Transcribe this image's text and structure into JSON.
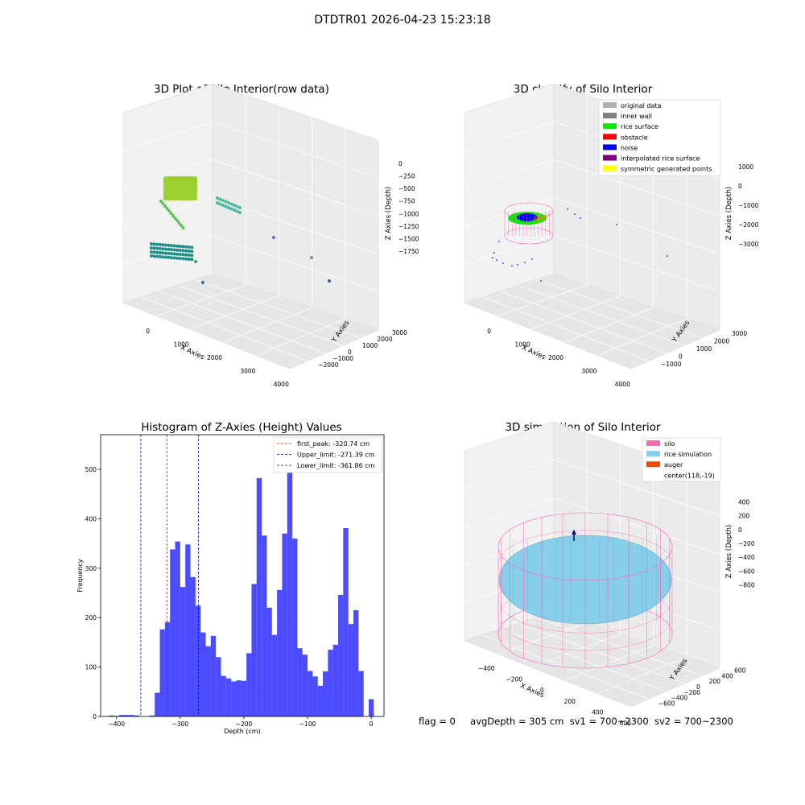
{
  "suptitle": "DTDTR01 2026-04-23 15:23:18",
  "status": {
    "flag": "flag = 0",
    "avg": "avgDepth = 305 cm",
    "sv1": "sv1 = 700~2300",
    "sv2": "sv2 = 700~2300"
  },
  "chart_data": [
    {
      "type": "scatter3d",
      "title": "3D Plot of Silo Interior(row data)",
      "xlabel": "X Axies",
      "ylabel": "Y Axies",
      "zlabel": "Z Axies (Depth)",
      "x_ticks": [
        "0",
        "1000",
        "2000",
        "3000",
        "4000"
      ],
      "y_ticks": [
        "−2000",
        "−1000",
        "0",
        "1000",
        "2000",
        "3000"
      ],
      "z_ticks": [
        "0",
        "−250",
        "−500",
        "−750",
        "−1000",
        "−1250",
        "−1500",
        "−1750"
      ],
      "colormap": "viridis"
    },
    {
      "type": "scatter3d",
      "title": "3D classify of Silo Interior",
      "xlabel": "X Axies",
      "ylabel": "Y Axies",
      "zlabel": "Z Axies (Depth)",
      "x_ticks": [
        "0",
        "1000",
        "2000",
        "3000",
        "4000"
      ],
      "y_ticks": [
        "−1000",
        "0",
        "1000",
        "2000",
        "3000"
      ],
      "z_ticks": [
        "1000",
        "0",
        "−1000",
        "−2000",
        "−3000"
      ],
      "legend_position": "top-right",
      "legend": [
        {
          "label": "original data",
          "color": "#b0b0b0"
        },
        {
          "label": "inner wall",
          "color": "#808080"
        },
        {
          "label": "rice surface",
          "color": "#00ee00"
        },
        {
          "label": "obstacle",
          "color": "#ff0000"
        },
        {
          "label": "noise",
          "color": "#0000ff"
        },
        {
          "label": "interpolated rice surface",
          "color": "#800080"
        },
        {
          "label": "symmetric generated points",
          "color": "#ffff00"
        }
      ]
    },
    {
      "type": "bar",
      "title": "Histogram of Z-Axies (Height) Values",
      "xlabel": "Depth (cm)",
      "ylabel": "Frequency",
      "xlim": [
        -425,
        20
      ],
      "ylim": [
        0,
        570
      ],
      "x_ticks": [
        -400,
        -300,
        -200,
        -100,
        0
      ],
      "y_ticks": [
        0,
        100,
        200,
        300,
        400,
        500
      ],
      "bar_color": "#0000ff",
      "bin_start": -412,
      "bin_width": 8,
      "values": [
        2,
        1,
        3,
        3,
        3,
        2,
        0,
        0,
        2,
        48,
        176,
        191,
        338,
        354,
        262,
        348,
        282,
        224,
        170,
        142,
        163,
        120,
        82,
        77,
        71,
        73,
        72,
        128,
        268,
        482,
        366,
        220,
        165,
        256,
        370,
        557,
        360,
        138,
        125,
        92,
        81,
        62,
        91,
        135,
        145,
        246,
        381,
        187,
        215,
        92,
        0,
        35
      ],
      "lines": [
        {
          "label": "first_peak: -320.74 cm",
          "x": -320.74,
          "color": "#ff0000"
        },
        {
          "label": "Upper_limit: -271.39 cm",
          "x": -271.39,
          "color": "#0000ff"
        },
        {
          "label": "Lower_limit: -361.86 cm",
          "x": -361.86,
          "color": "#0000ff"
        }
      ],
      "legend_position": "top-right"
    },
    {
      "type": "surface3d",
      "title": "3D simulation of Silo Interior",
      "xlabel": "X Axies",
      "ylabel": "Y Axies",
      "zlabel": "Z Axies (Depth)",
      "x_ticks": [
        "−400",
        "−200",
        "0",
        "200",
        "400",
        "600"
      ],
      "y_ticks": [
        "−600",
        "−400",
        "−200",
        "0",
        "200",
        "400",
        "600"
      ],
      "z_ticks": [
        "400",
        "200",
        "0",
        "−200",
        "−400",
        "−600",
        "−800"
      ],
      "legend_position": "top-right",
      "legend": [
        {
          "label": "silo",
          "color": "#ff69b4"
        },
        {
          "label": "rice simulation",
          "color": "#87ceeb"
        },
        {
          "label": "auger",
          "color": "#ff4500"
        },
        {
          "label": "center(118,-19)",
          "color": ""
        }
      ]
    }
  ]
}
